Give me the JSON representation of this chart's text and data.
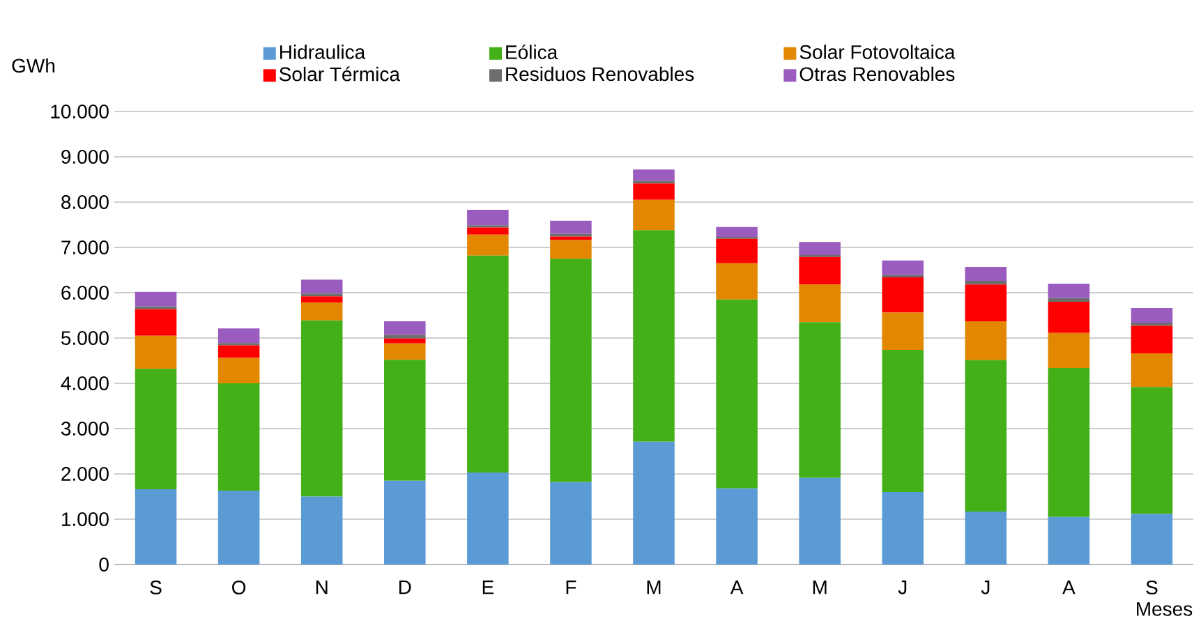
{
  "chart_data": {
    "type": "bar",
    "stacked": true,
    "ylabel": "GWh",
    "xlabel": "Meses",
    "categories": [
      "S",
      "O",
      "N",
      "D",
      "E",
      "F",
      "M",
      "A",
      "M",
      "J",
      "J",
      "A",
      "S"
    ],
    "series": [
      {
        "name": "Hidraulica",
        "color": "#5b9bd5",
        "values": [
          1660,
          1630,
          1500,
          1850,
          2030,
          1820,
          2710,
          1680,
          1910,
          1600,
          1170,
          1050,
          1120
        ]
      },
      {
        "name": "Eólica",
        "color": "#44b017",
        "values": [
          2660,
          2370,
          3890,
          2670,
          4790,
          4930,
          4670,
          4170,
          3440,
          3140,
          3340,
          3290,
          2800
        ]
      },
      {
        "name": "Solar Fotovoltaica",
        "color": "#e38600",
        "values": [
          730,
          560,
          390,
          360,
          460,
          410,
          670,
          800,
          830,
          820,
          860,
          770,
          740
        ]
      },
      {
        "name": "Solar Térmica",
        "color": "#ff0000",
        "values": [
          590,
          280,
          140,
          110,
          160,
          80,
          360,
          540,
          610,
          780,
          810,
          690,
          610
        ]
      },
      {
        "name": "Residuos Renovables",
        "color": "#6d6d6d",
        "values": [
          60,
          50,
          60,
          80,
          50,
          60,
          60,
          40,
          40,
          50,
          80,
          80,
          70
        ]
      },
      {
        "name": "Otras Renovables",
        "color": "#9a5cbf",
        "values": [
          320,
          320,
          310,
          300,
          340,
          290,
          250,
          220,
          290,
          320,
          310,
          320,
          320
        ]
      }
    ],
    "ylim": [
      0,
      10000
    ],
    "yticks": [
      0,
      {
        "value": 1000,
        "label": "1.000"
      },
      {
        "value": 2000,
        "label": "2.000"
      },
      {
        "value": 3000,
        "label": "3.000"
      },
      {
        "value": 4000,
        "label": "4.000"
      },
      {
        "value": 5000,
        "label": "5.000"
      },
      {
        "value": 6000,
        "label": "6.000"
      },
      {
        "value": 7000,
        "label": "7.000"
      },
      {
        "value": 8000,
        "label": "8.000"
      },
      {
        "value": 9000,
        "label": "9.000"
      },
      {
        "value": 10000,
        "label": "10.000"
      }
    ],
    "grid": "y",
    "legend": "top"
  }
}
